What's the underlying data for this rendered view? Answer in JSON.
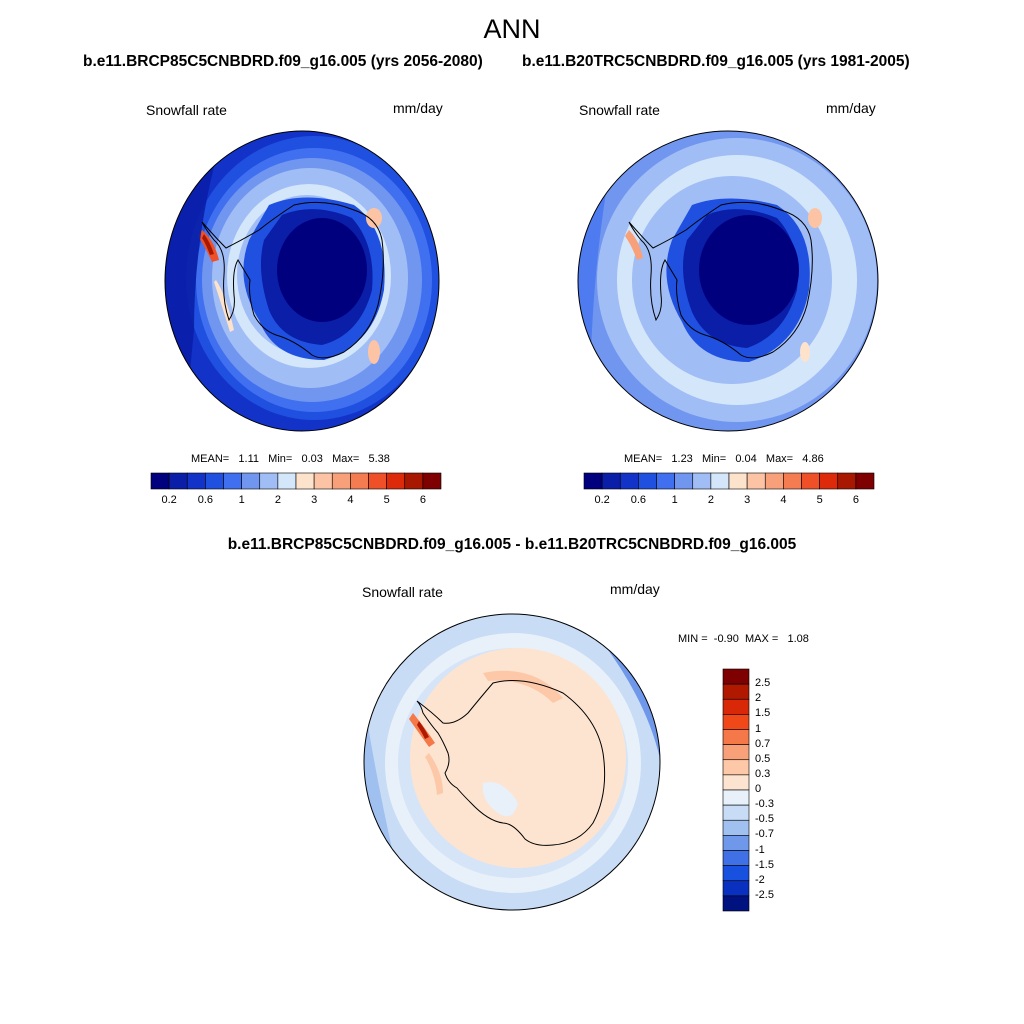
{
  "figure": {
    "title": "ANN",
    "panels": [
      {
        "case": "b.e11.BRCP85C5CNBDRD.f09_g16.005 (yrs 2056-2080)",
        "variable": "Snowfall rate",
        "units": "mm/day",
        "stats": {
          "mean_label": "MEAN=",
          "mean": "1.11",
          "min_label": "Min=",
          "min": "0.03",
          "max_label": "Max=",
          "max": "5.38"
        }
      },
      {
        "case": "b.e11.B20TRC5CNBDRD.f09_g16.005 (yrs 1981-2005)",
        "variable": "Snowfall rate",
        "units": "mm/day",
        "stats": {
          "mean_label": "MEAN=",
          "mean": "1.23",
          "min_label": "Min=",
          "min": "0.04",
          "max_label": "Max=",
          "max": "4.86"
        }
      }
    ],
    "colorbar_abs": {
      "colors": [
        "#00007f",
        "#0a1ea8",
        "#1232c8",
        "#2050e0",
        "#4070f0",
        "#7096f0",
        "#a0bdf5",
        "#d4e6fa",
        "#fde2cc",
        "#fcc4a4",
        "#f8a07a",
        "#f47c50",
        "#f05028",
        "#dc2a0a",
        "#a81800",
        "#7f0000"
      ],
      "tick_labels": [
        "0.2",
        "0.6",
        "1",
        "2",
        "3",
        "4",
        "5",
        "6"
      ]
    },
    "difference": {
      "title": "b.e11.BRCP85C5CNBDRD.f09_g16.005 - b.e11.B20TRC5CNBDRD.f09_g16.005",
      "variable": "Snowfall rate",
      "units": "mm/day",
      "stats": {
        "min_label": "MIN =",
        "min": "-0.90",
        "max_label": "MAX =",
        "max": "1.08"
      },
      "colorbar": {
        "colors": [
          "#7f0000",
          "#b01800",
          "#d82808",
          "#f04818",
          "#f47848",
          "#f8a078",
          "#fcc8a8",
          "#fde4d0",
          "#e8f0fa",
          "#c8dcf5",
          "#a0c0f0",
          "#7098ea",
          "#4070e6",
          "#1850e0",
          "#0a30c0",
          "#00127f"
        ],
        "labels": [
          "2.5",
          "2",
          "1.5",
          "1",
          "0.7",
          "0.5",
          "0.3",
          "0",
          "-0.3",
          "-0.5",
          "-0.7",
          "-1",
          "-1.5",
          "-2",
          "-2.5"
        ]
      }
    }
  }
}
